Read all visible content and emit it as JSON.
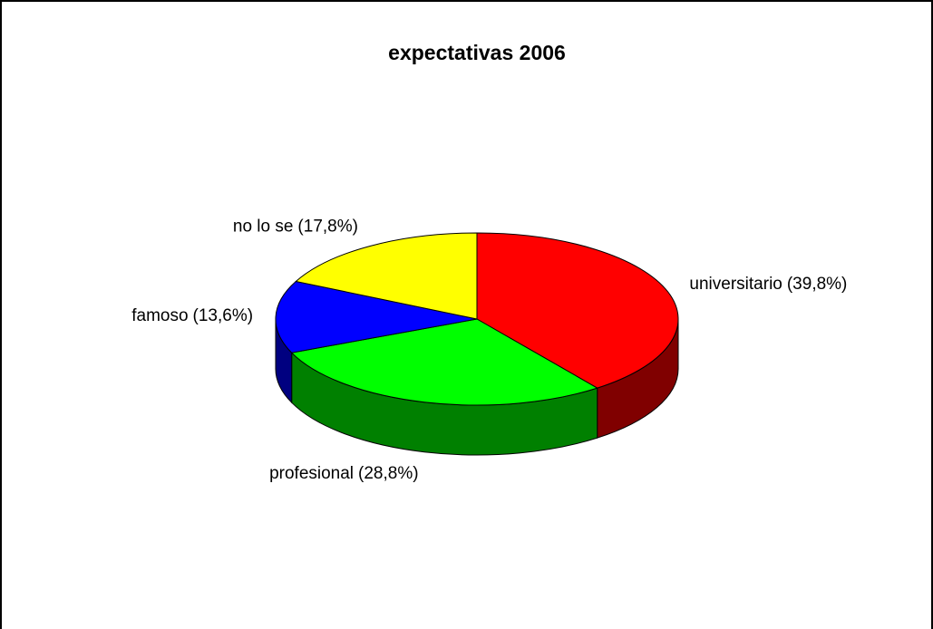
{
  "chart_data": {
    "type": "pie",
    "title": "expectativas 2006",
    "categories": [
      "universitario",
      "profesional",
      "famoso",
      "no lo se"
    ],
    "values": [
      39.8,
      28.8,
      13.6,
      17.8
    ],
    "value_labels": [
      "(39,8%)",
      "(28,8%)",
      "(13,6%)",
      "(17,8%)"
    ],
    "colors": [
      "#ff0000",
      "#00ff00",
      "#0000ff",
      "#ffff00"
    ]
  }
}
